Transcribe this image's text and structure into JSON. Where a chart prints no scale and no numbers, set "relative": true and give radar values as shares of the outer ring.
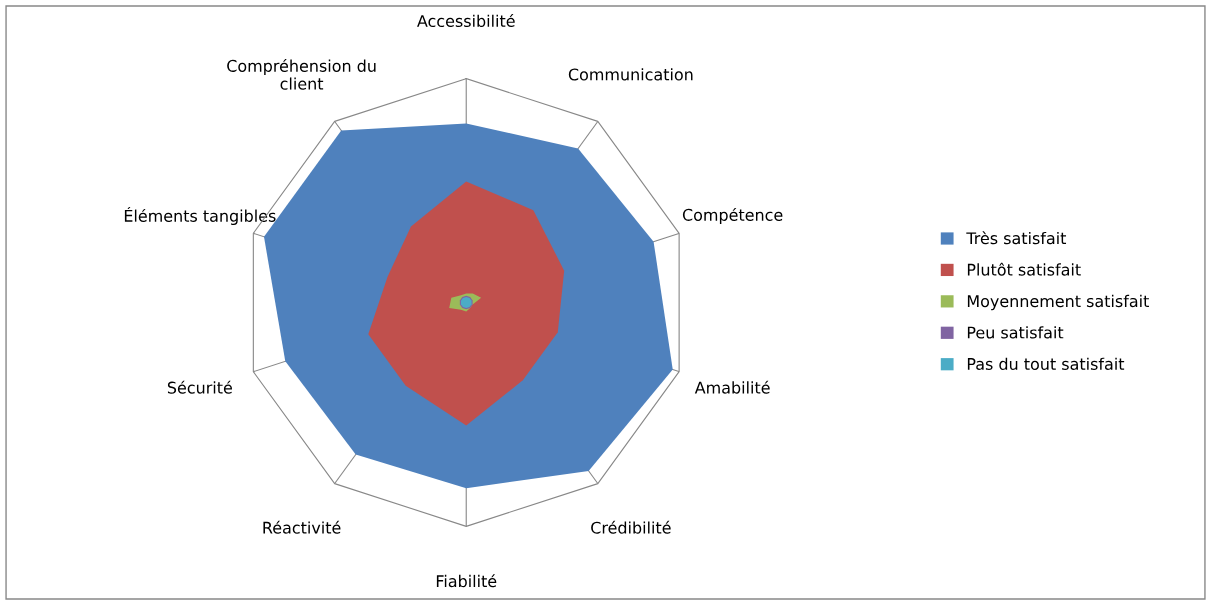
{
  "chart_data": {
    "type": "radar",
    "relative": true,
    "legend": "right",
    "categories": [
      "Accessibilité",
      "Communication",
      "Compétence",
      "Amabilité",
      "Crédibilité",
      "Fiabilité",
      "Réactivité",
      "Sécurité",
      "Éléments tangibles",
      "Compréhension du\nclient"
    ],
    "series": [
      {
        "name": "Très satisfait",
        "color": "#4f81bd",
        "values": [
          0.8,
          0.85,
          0.88,
          0.97,
          0.93,
          0.83,
          0.84,
          0.85,
          0.95,
          0.95
        ]
      },
      {
        "name": "Plutôt satisfait",
        "color": "#c0504d",
        "values": [
          0.54,
          0.51,
          0.46,
          0.43,
          0.43,
          0.55,
          0.46,
          0.46,
          0.37,
          0.42
        ]
      },
      {
        "name": "Moyennement satisfait",
        "color": "#9bbb59",
        "values": [
          0.04,
          0.05,
          0.07,
          0.03,
          0.03,
          0.04,
          0.04,
          0.08,
          0.07,
          0.04
        ]
      },
      {
        "name": "Peu satisfait",
        "color": "#8064a2",
        "values": [
          0.03,
          0.03,
          0.03,
          0.03,
          0.03,
          0.03,
          0.03,
          0.03,
          0.03,
          0.03
        ]
      },
      {
        "name": "Pas du tout satisfait",
        "color": "#4bacc6",
        "values": [
          0.025,
          0.025,
          0.025,
          0.025,
          0.025,
          0.025,
          0.025,
          0.025,
          0.025,
          0.025
        ]
      }
    ]
  }
}
